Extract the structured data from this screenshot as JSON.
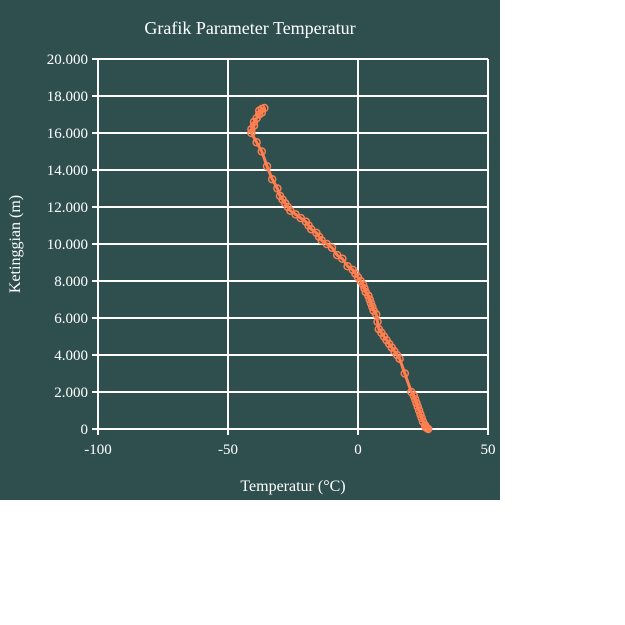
{
  "colors": {
    "background": "#2f4f4f",
    "grid": "#ffffff",
    "series": "#ff7f50",
    "text": "#ffffff"
  },
  "chart_data": {
    "type": "line",
    "title": "Grafik Parameter Temperatur",
    "xlabel": "Temperatur (°C)",
    "ylabel": "Ketinggian (m)",
    "xlim": [
      -100,
      50
    ],
    "ylim": [
      0,
      20000
    ],
    "x_ticks": [
      -100,
      -50,
      0,
      50
    ],
    "x_tick_labels": [
      "-100",
      "-50",
      "0",
      "50"
    ],
    "y_ticks": [
      0,
      2000,
      4000,
      6000,
      8000,
      10000,
      12000,
      14000,
      16000,
      18000,
      20000
    ],
    "y_tick_labels": [
      "0",
      "2.000",
      "4.000",
      "6.000",
      "8.000",
      "10.000",
      "12.000",
      "14.000",
      "16.000",
      "18.000",
      "20.000"
    ],
    "grid": true,
    "legend": "none",
    "series": [
      {
        "x": [
          27,
          26.5,
          26,
          25.8,
          25,
          24.5,
          24,
          23.5,
          23,
          22.5,
          22,
          21.5,
          20.5,
          18,
          16,
          15,
          14,
          13,
          12,
          11,
          10,
          9,
          8,
          7.5,
          7,
          6,
          5.5,
          5,
          4.5,
          4,
          3,
          2.5,
          2,
          1,
          0,
          -1,
          -2,
          -4,
          -6,
          -8,
          -10,
          -12,
          -14,
          -15,
          -16,
          -18,
          -19,
          -20,
          -22,
          -24,
          -26,
          -27,
          -28,
          -29,
          -30,
          -31,
          -33,
          -35,
          -37,
          -39,
          -41,
          -41,
          -40,
          -40,
          -39,
          -38,
          -37,
          -38,
          -37,
          -36
        ],
        "y": [
          0,
          50,
          100,
          200,
          400,
          600,
          800,
          1000,
          1200,
          1400,
          1600,
          1800,
          2000,
          3000,
          3800,
          4000,
          4200,
          4400,
          4600,
          4800,
          5000,
          5200,
          5400,
          5800,
          6200,
          6400,
          6600,
          6800,
          7000,
          7200,
          7400,
          7600,
          7800,
          8000,
          8200,
          8400,
          8600,
          8800,
          9200,
          9400,
          9800,
          10000,
          10200,
          10400,
          10600,
          10800,
          11000,
          11200,
          11400,
          11600,
          11800,
          12000,
          12200,
          12400,
          12600,
          13000,
          13500,
          14200,
          15000,
          15500,
          16000,
          16200,
          16400,
          16600,
          16800,
          17000,
          17100,
          17200,
          17300,
          17350
        ]
      }
    ]
  }
}
